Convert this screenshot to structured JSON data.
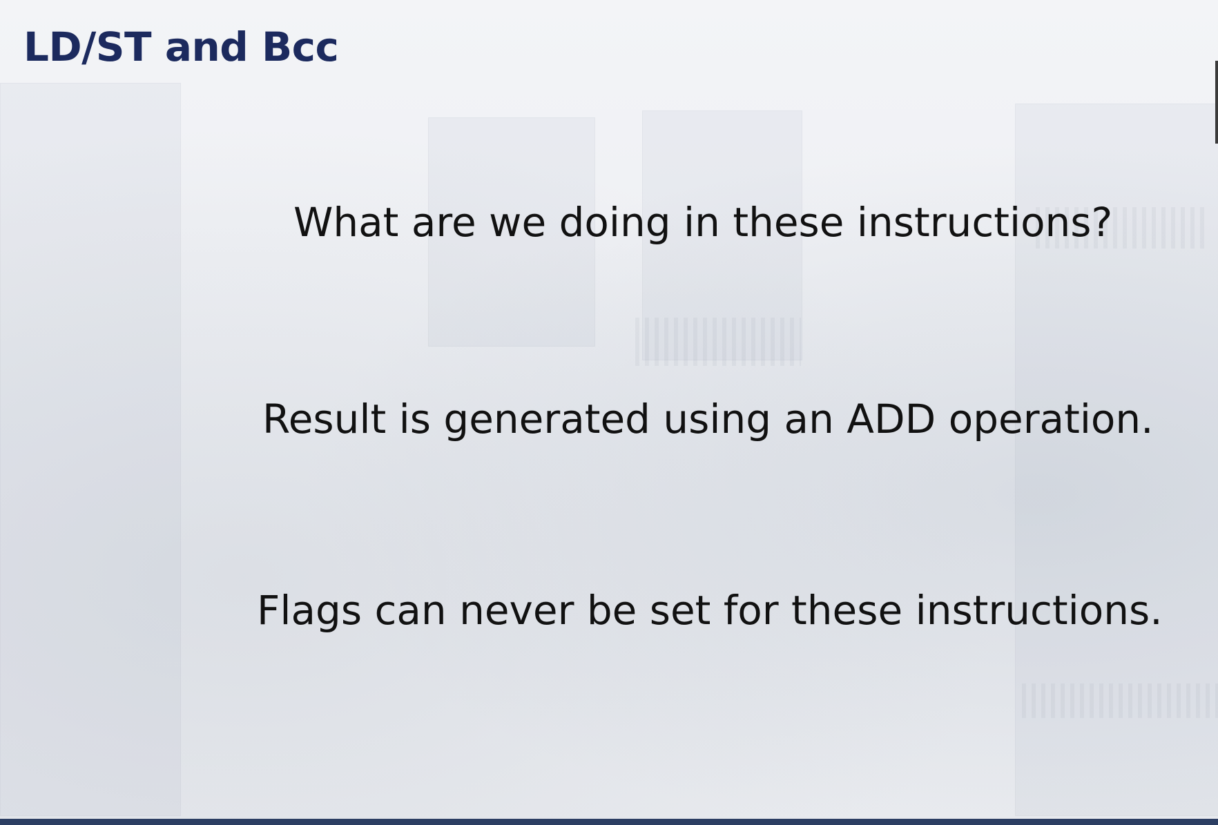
{
  "slide": {
    "title": "LD/ST and Bcc",
    "lines": [
      "What are we doing in these instructions?",
      "Result is generated using an ADD operation.",
      "Flags can never be set for these instructions."
    ]
  },
  "colors": {
    "title": "#1c2a5e",
    "body_text": "#111111",
    "bottom_bar": "#2c3e63"
  }
}
